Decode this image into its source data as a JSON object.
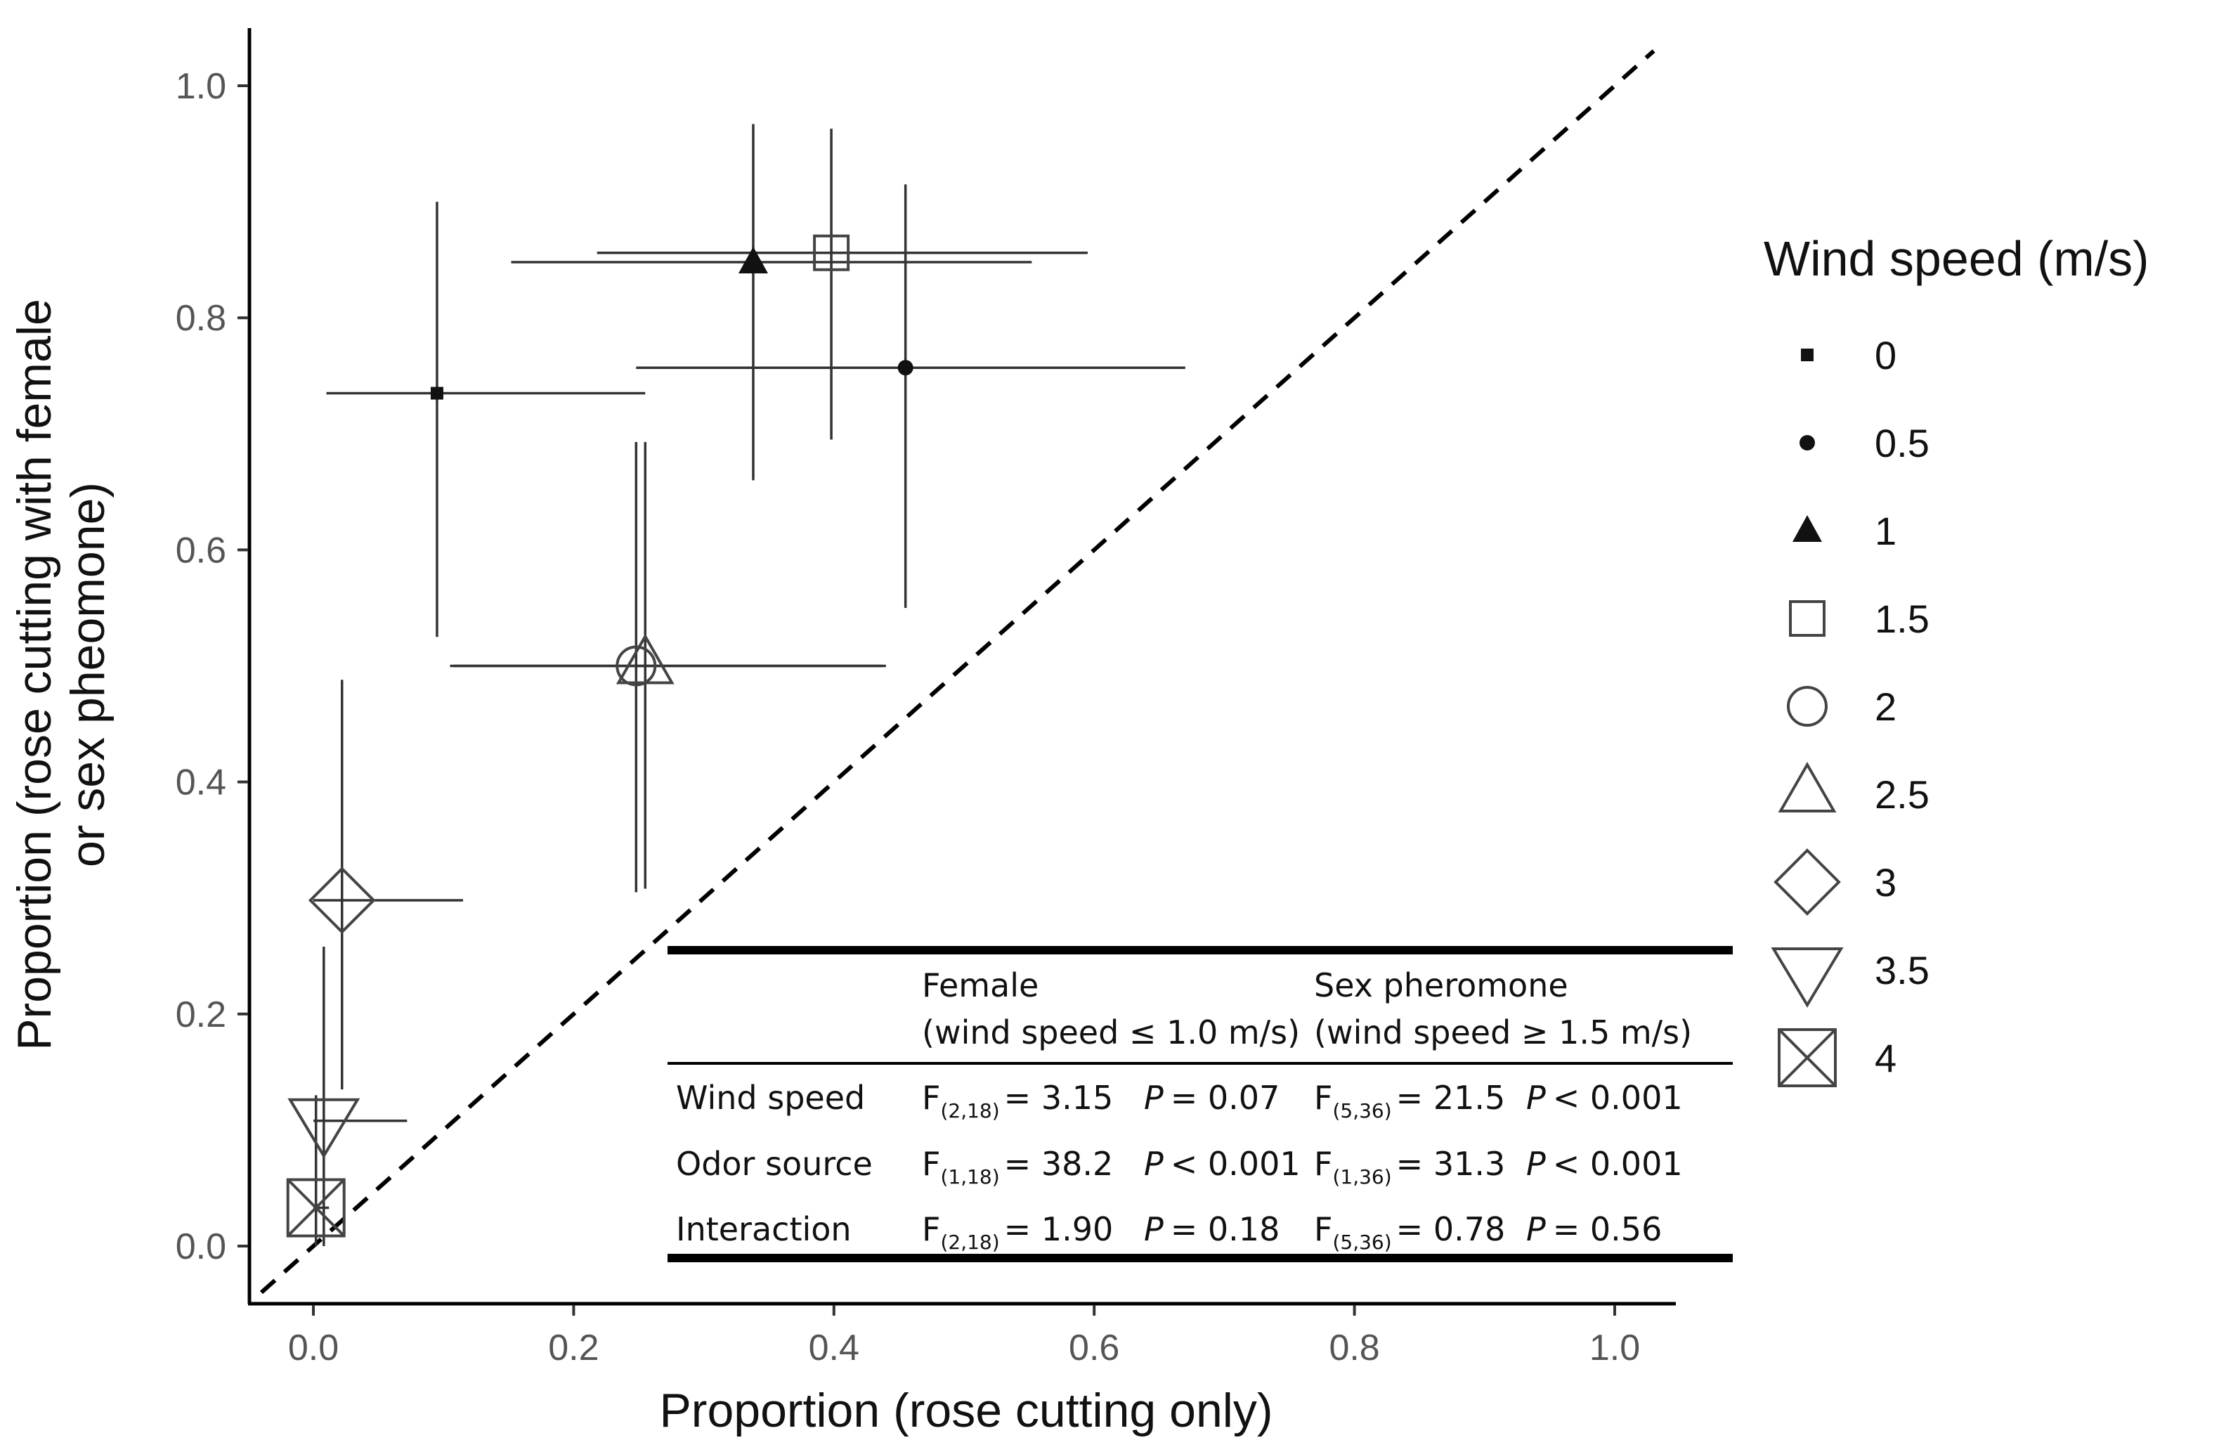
{
  "chart_data": {
    "type": "scatter",
    "xlabel": "Proportion (rose cutting only)",
    "ylabel_lines": [
      "Proportion (rose cutting with female",
      "or sex pheomone)"
    ],
    "xlim": [
      -0.05,
      1.05
    ],
    "ylim": [
      -0.05,
      1.05
    ],
    "x_ticks": [
      0.0,
      0.2,
      0.4,
      0.6,
      0.8,
      1.0
    ],
    "y_ticks": [
      0.0,
      0.2,
      0.4,
      0.6,
      0.8,
      1.0
    ],
    "x_tick_labels": [
      "0.0",
      "0.2",
      "0.4",
      "0.6",
      "0.8",
      "1.0"
    ],
    "y_tick_labels": [
      "0.0",
      "0.2",
      "0.4",
      "0.6",
      "0.8",
      "1.0"
    ],
    "reference_line": "y = x (dashed)",
    "legend_title": "Wind speed (m/s)",
    "points": [
      {
        "wind": "0",
        "shape": "small-square",
        "x": 0.095,
        "y": 0.735,
        "xerr": [
          0.01,
          0.255
        ],
        "yerr": [
          0.525,
          0.9
        ]
      },
      {
        "wind": "0.5",
        "shape": "small-circle",
        "x": 0.455,
        "y": 0.757,
        "xerr": [
          0.248,
          0.67
        ],
        "yerr": [
          0.55,
          0.915
        ]
      },
      {
        "wind": "1",
        "shape": "filled-triangle",
        "x": 0.338,
        "y": 0.848,
        "xerr": [
          0.152,
          0.552
        ],
        "yerr": [
          0.66,
          0.967
        ]
      },
      {
        "wind": "1.5",
        "shape": "open-square",
        "x": 0.398,
        "y": 0.856,
        "xerr": [
          0.218,
          0.595
        ],
        "yerr": [
          0.695,
          0.963
        ]
      },
      {
        "wind": "2",
        "shape": "open-circle",
        "x": 0.248,
        "y": 0.5,
        "xerr": [
          0.105,
          0.44
        ],
        "yerr": [
          0.305,
          0.693
        ]
      },
      {
        "wind": "2.5",
        "shape": "open-triangle",
        "x": 0.255,
        "y": 0.5,
        "xerr": [
          0.108,
          0.437
        ],
        "yerr": [
          0.308,
          0.693
        ]
      },
      {
        "wind": "3",
        "shape": "open-diamond",
        "x": 0.022,
        "y": 0.298,
        "xerr": [
          0.0,
          0.115
        ],
        "yerr": [
          0.135,
          0.488
        ]
      },
      {
        "wind": "3.5",
        "shape": "open-inverted-triangle",
        "x": 0.008,
        "y": 0.108,
        "xerr": [
          0.0,
          0.072
        ],
        "yerr": [
          0.0,
          0.258
        ]
      },
      {
        "wind": "4",
        "shape": "crossed-square",
        "x": 0.002,
        "y": 0.033,
        "xerr": [
          0.0,
          0.012
        ],
        "yerr": [
          0.0,
          0.13
        ]
      }
    ],
    "legend": [
      "0",
      "0.5",
      "1",
      "1.5",
      "2",
      "2.5",
      "3",
      "3.5",
      "4"
    ],
    "table": {
      "col1_header_line1": "Female",
      "col1_header_line2": "(wind speed ≤ 1.0 m/s)",
      "col2_header_line1": "Sex pheromone",
      "col2_header_line2": "(wind speed ≥ 1.5 m/s)",
      "rows": [
        {
          "label": "Wind speed",
          "f1_sub": "(2,18)",
          "f1_val": "= 3.15",
          "p1_val": "= 0.07",
          "f2_sub": "(5,36)",
          "f2_val": "= 21.5",
          "p2_val": "< 0.001"
        },
        {
          "label": "Odor source",
          "f1_sub": "(1,18)",
          "f1_val": "= 38.2",
          "p1_val": "< 0.001",
          "f2_sub": "(1,36)",
          "f2_val": "= 31.3",
          "p2_val": "< 0.001"
        },
        {
          "label": "Interaction",
          "f1_sub": "(2,18)",
          "f1_val": "= 1.90",
          "p1_val": "= 0.18",
          "f2_sub": "(5,36)",
          "f2_val": "= 0.78",
          "p2_val": "= 0.56"
        }
      ],
      "f_letter": "F",
      "p_letter": "P"
    }
  }
}
